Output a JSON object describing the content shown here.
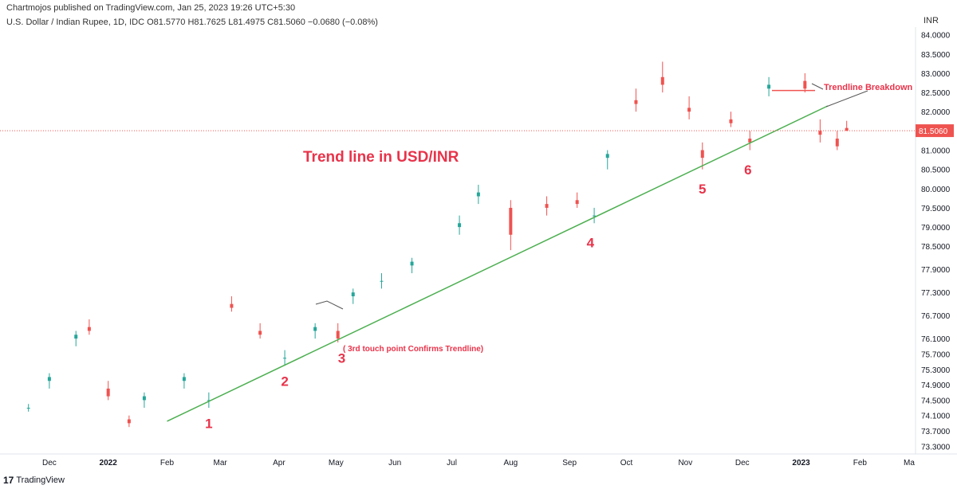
{
  "header": {
    "published": "Chartmojos published on TradingView.com, Jan 25, 2023 19:26 UTC+5:30",
    "ohlc": "U.S. Dollar / Indian Rupee, 1D, IDC  O81.5770  H81.7625  L81.4975  C81.5060  −0.0680 (−0.08%)",
    "currency": "INR"
  },
  "footer": {
    "brand": "TradingView",
    "logo_icon": "tradingview-logo-icon"
  },
  "colors": {
    "up": "#26a69a",
    "down": "#ef5350",
    "trend": "#4caf50",
    "annotation": "#e8334a",
    "price_line": "#ef5350",
    "price_tag": "#ef5350",
    "axis_text": "#131722",
    "connector": "#555555"
  },
  "chart_data": {
    "type": "candlestick",
    "title": "Trend line in USD/INR",
    "symbol": "USD/INR",
    "timeframe": "1D",
    "ylim": [
      73.1,
      84.2
    ],
    "y_ticks": [
      "84.0000",
      "83.5000",
      "83.0000",
      "82.5000",
      "82.0000",
      "81.5000",
      "81.0000",
      "80.5000",
      "80.0000",
      "79.5000",
      "79.0000",
      "78.5000",
      "77.9000",
      "77.3000",
      "76.7000",
      "76.1000",
      "75.7000",
      "75.3000",
      "74.9000",
      "74.5000",
      "74.1000",
      "73.7000",
      "73.3000"
    ],
    "x_ticks": [
      "Dec",
      "2022",
      "Feb",
      "Mar",
      "Apr",
      "May",
      "Jun",
      "Jul",
      "Aug",
      "Sep",
      "Oct",
      "Nov",
      "Dec",
      "2023",
      "Feb",
      "Ma"
    ],
    "last_price": "81.5060",
    "last_price_value": 81.506,
    "series": [
      {
        "date": "2021-11-20",
        "open": 74.3,
        "high": 74.4,
        "low": 74.2,
        "close": 74.3
      },
      {
        "date": "2021-12-01",
        "open": 75.0,
        "high": 75.2,
        "low": 74.8,
        "close": 75.1
      },
      {
        "date": "2021-12-15",
        "open": 76.1,
        "high": 76.3,
        "low": 75.9,
        "close": 76.2
      },
      {
        "date": "2021-12-22",
        "open": 76.4,
        "high": 76.6,
        "low": 76.2,
        "close": 76.3
      },
      {
        "date": "2022-01-01",
        "open": 74.8,
        "high": 75.0,
        "low": 74.5,
        "close": 74.6
      },
      {
        "date": "2022-01-12",
        "open": 74.0,
        "high": 74.1,
        "low": 73.8,
        "close": 73.9
      },
      {
        "date": "2022-01-20",
        "open": 74.5,
        "high": 74.7,
        "low": 74.3,
        "close": 74.6
      },
      {
        "date": "2022-02-10",
        "open": 75.0,
        "high": 75.2,
        "low": 74.8,
        "close": 75.1
      },
      {
        "date": "2022-02-23",
        "open": 74.5,
        "high": 74.7,
        "low": 74.3,
        "close": 74.5
      },
      {
        "date": "2022-03-07",
        "open": 77.0,
        "high": 77.2,
        "low": 76.8,
        "close": 76.9
      },
      {
        "date": "2022-03-22",
        "open": 76.3,
        "high": 76.5,
        "low": 76.1,
        "close": 76.2
      },
      {
        "date": "2022-04-04",
        "open": 75.6,
        "high": 75.8,
        "low": 75.4,
        "close": 75.6
      },
      {
        "date": "2022-04-20",
        "open": 76.3,
        "high": 76.5,
        "low": 76.1,
        "close": 76.4
      },
      {
        "date": "2022-05-02",
        "open": 76.3,
        "high": 76.5,
        "low": 76.0,
        "close": 76.1
      },
      {
        "date": "2022-05-10",
        "open": 77.2,
        "high": 77.4,
        "low": 77.0,
        "close": 77.3
      },
      {
        "date": "2022-05-25",
        "open": 77.6,
        "high": 77.8,
        "low": 77.4,
        "close": 77.6
      },
      {
        "date": "2022-06-10",
        "open": 78.0,
        "high": 78.2,
        "low": 77.8,
        "close": 78.1
      },
      {
        "date": "2022-07-05",
        "open": 79.0,
        "high": 79.3,
        "low": 78.8,
        "close": 79.1
      },
      {
        "date": "2022-07-15",
        "open": 79.8,
        "high": 80.1,
        "low": 79.6,
        "close": 79.9
      },
      {
        "date": "2022-08-01",
        "open": 79.5,
        "high": 79.7,
        "low": 78.4,
        "close": 78.8
      },
      {
        "date": "2022-08-20",
        "open": 79.6,
        "high": 79.8,
        "low": 79.3,
        "close": 79.5
      },
      {
        "date": "2022-09-05",
        "open": 79.7,
        "high": 79.9,
        "low": 79.5,
        "close": 79.6
      },
      {
        "date": "2022-09-14",
        "open": 79.3,
        "high": 79.5,
        "low": 79.1,
        "close": 79.3
      },
      {
        "date": "2022-09-21",
        "open": 80.8,
        "high": 81.0,
        "low": 80.5,
        "close": 80.9
      },
      {
        "date": "2022-10-06",
        "open": 82.3,
        "high": 82.6,
        "low": 82.0,
        "close": 82.2
      },
      {
        "date": "2022-10-20",
        "open": 82.9,
        "high": 83.3,
        "low": 82.5,
        "close": 82.7
      },
      {
        "date": "2022-11-03",
        "open": 82.1,
        "high": 82.4,
        "low": 81.8,
        "close": 82.0
      },
      {
        "date": "2022-11-10",
        "open": 81.0,
        "high": 81.2,
        "low": 80.5,
        "close": 80.8
      },
      {
        "date": "2022-11-25",
        "open": 81.8,
        "high": 82.0,
        "low": 81.6,
        "close": 81.7
      },
      {
        "date": "2022-12-05",
        "open": 81.3,
        "high": 81.5,
        "low": 81.0,
        "close": 81.2
      },
      {
        "date": "2022-12-15",
        "open": 82.6,
        "high": 82.9,
        "low": 82.4,
        "close": 82.7
      },
      {
        "date": "2023-01-03",
        "open": 82.8,
        "high": 83.0,
        "low": 82.5,
        "close": 82.6
      },
      {
        "date": "2023-01-11",
        "open": 81.5,
        "high": 81.8,
        "low": 81.2,
        "close": 81.4
      },
      {
        "date": "2023-01-20",
        "open": 81.3,
        "high": 81.5,
        "low": 81.0,
        "close": 81.1
      },
      {
        "date": "2023-01-25",
        "open": 81.577,
        "high": 81.7625,
        "low": 81.4975,
        "close": 81.506
      }
    ],
    "trendline": {
      "from": {
        "date": "2022-02-01",
        "value": 73.95
      },
      "to": {
        "date": "2023-01-15",
        "value": 82.15
      }
    },
    "touch_points": [
      {
        "label": "1",
        "date": "2022-02-23",
        "value": 74.35
      },
      {
        "label": "2",
        "date": "2022-04-04",
        "value": 75.45
      },
      {
        "label": "3",
        "date": "2022-05-04",
        "value": 76.05
      },
      {
        "label": "4",
        "date": "2022-09-12",
        "value": 79.05
      },
      {
        "label": "5",
        "date": "2022-11-10",
        "value": 80.45
      },
      {
        "label": "6",
        "date": "2022-12-04",
        "value": 80.95
      }
    ],
    "annotations": [
      {
        "text": "( 3rd touch point Confirms Trendline)"
      },
      {
        "text": "Trendline Breakdown"
      }
    ],
    "grid": false,
    "legend": "none"
  }
}
